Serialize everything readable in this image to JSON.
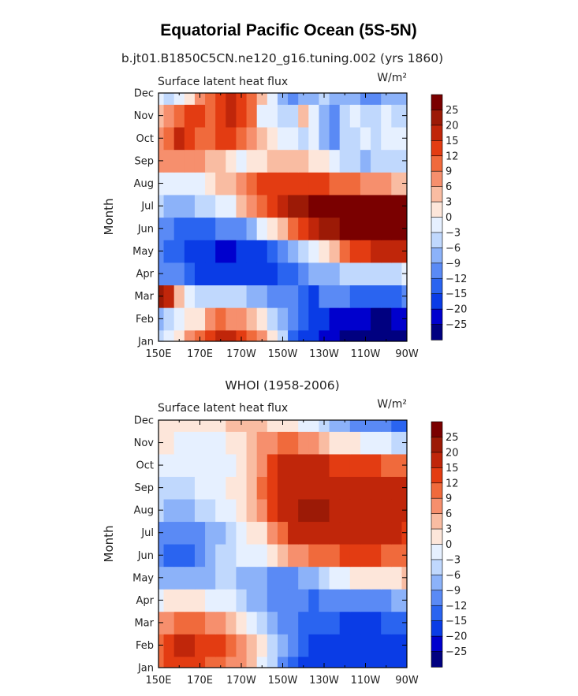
{
  "figure": {
    "title": "Equatorial Pacific Ocean (5S-5N)",
    "palette": [
      "#000080",
      "#0000cd",
      "#0a3ce6",
      "#2a64f0",
      "#5a8af5",
      "#8cb2f9",
      "#c0d8fd",
      "#e6f0ff",
      "#fde6da",
      "#f9bca2",
      "#f68f6d",
      "#f06a3c",
      "#e33c12",
      "#c0260a",
      "#9c1a06",
      "#7a0000"
    ],
    "colorbar_labels": [
      "25",
      "20",
      "15",
      "12",
      "9",
      "6",
      "3",
      "0",
      "−3",
      "−6",
      "−9",
      "−12",
      "−15",
      "−20",
      "−25"
    ]
  },
  "chart_data": [
    {
      "type": "heatmap",
      "subtitle": "b.jt01.B1850C5CN.ne120_g16.tuning.002 (yrs 1860)",
      "panel_left_label": "Surface latent heat flux",
      "units": "W/m²",
      "ylabel": "Month",
      "x_labels": [
        "150E",
        "170E",
        "170W",
        "150W",
        "130W",
        "110W",
        "90W"
      ],
      "y_labels": [
        "Jan",
        "Feb",
        "Mar",
        "Apr",
        "May",
        "Jun",
        "Jul",
        "Aug",
        "Sep",
        "Oct",
        "Nov",
        "Dec"
      ],
      "x_longitudes": [
        150,
        155,
        160,
        165,
        170,
        175,
        180,
        185,
        190,
        195,
        200,
        205,
        210,
        215,
        220,
        225,
        230,
        235,
        240,
        245,
        250,
        255,
        260,
        265,
        270
      ],
      "levels": [
        -25,
        -20,
        -15,
        -12,
        -9,
        -6,
        -3,
        0,
        3,
        6,
        9,
        12,
        15,
        20,
        25
      ],
      "values": [
        [
          -5,
          -3,
          2,
          6,
          10,
          14,
          17,
          17,
          14,
          10,
          6,
          2,
          -6,
          -13,
          -18,
          -20,
          -22,
          -24,
          -26,
          -27,
          -28,
          -28,
          -28,
          -27,
          -26
        ],
        [
          -7,
          -4,
          -3,
          0,
          2,
          6,
          9,
          8,
          6,
          3,
          0,
          -4,
          -9,
          -12,
          -15,
          -17,
          -19,
          -21,
          -23,
          -24,
          -25,
          -26,
          -26,
          -25,
          -24
        ],
        [
          22,
          15,
          3,
          -3,
          -5,
          -6,
          -5,
          -6,
          -6,
          -8,
          -9,
          -10,
          -12,
          -12,
          -13,
          -16,
          -12,
          -11,
          -12,
          -14,
          -14,
          -13,
          -14,
          -13,
          -12
        ],
        [
          -10,
          -11,
          -12,
          -14,
          -16,
          -17,
          -18,
          -19,
          -19,
          -18,
          -17,
          -16,
          -15,
          -13,
          -11,
          -9,
          -8,
          -7,
          -6,
          -6,
          -5,
          -5,
          -4,
          -4,
          -3
        ],
        [
          -12,
          -13,
          -14,
          -16,
          -18,
          -20,
          -21,
          -21,
          -20,
          -19,
          -17,
          -15,
          -12,
          -9,
          -6,
          -3,
          1,
          5,
          9,
          12,
          14,
          15,
          15,
          16,
          16
        ],
        [
          -12,
          -12,
          -13,
          -13,
          -13,
          -13,
          -12,
          -11,
          -10,
          -7,
          -3,
          0,
          5,
          10,
          14,
          17,
          20,
          24,
          26,
          27,
          28,
          28,
          27,
          26,
          25
        ],
        [
          -6,
          -7,
          -7,
          -7,
          -6,
          -5,
          -3,
          -1,
          3,
          7,
          11,
          14,
          18,
          21,
          24,
          28,
          30,
          31,
          31,
          31,
          31,
          30,
          29,
          28,
          27
        ],
        [
          -1,
          -2,
          -2,
          -2,
          -1,
          1,
          3,
          5,
          8,
          11,
          13,
          14,
          14,
          14,
          13,
          12,
          12,
          11,
          10,
          9,
          8,
          7,
          6,
          5,
          4
        ],
        [
          6,
          7,
          7,
          7,
          6,
          4,
          3,
          1,
          -1,
          0,
          1,
          3,
          4,
          5,
          4,
          2,
          1,
          -2,
          -4,
          -6,
          -7,
          -6,
          -5,
          -5,
          -4
        ],
        [
          8,
          10,
          15,
          13,
          11,
          11,
          12,
          13,
          9,
          8,
          4,
          0,
          -2,
          -1,
          -4,
          -2,
          -8,
          -10,
          -6,
          -4,
          -3,
          -4,
          -3,
          -2,
          -2
        ],
        [
          4,
          8,
          11,
          13,
          13,
          10,
          12,
          16,
          13,
          9,
          -1,
          -3,
          -6,
          -4,
          3,
          -3,
          -9,
          -11,
          -4,
          -3,
          -4,
          -5,
          -3,
          -4,
          -5
        ],
        [
          -3,
          -4,
          -2,
          2,
          7,
          11,
          14,
          15,
          13,
          9,
          4,
          -3,
          -8,
          -10,
          -9,
          -7,
          -6,
          -7,
          -8,
          -9,
          -10,
          -10,
          -9,
          -9,
          -8
        ]
      ]
    },
    {
      "type": "heatmap",
      "subtitle": "WHOI (1958-2006)",
      "panel_left_label": "Surface latent heat flux",
      "units": "W/m²",
      "ylabel": "Month",
      "x_labels": [
        "150E",
        "170E",
        "170W",
        "150W",
        "130W",
        "110W",
        "90W"
      ],
      "y_labels": [
        "Jan",
        "Feb",
        "Mar",
        "Apr",
        "May",
        "Jun",
        "Jul",
        "Aug",
        "Sep",
        "Oct",
        "Nov",
        "Dec"
      ],
      "x_longitudes": [
        150,
        155,
        160,
        165,
        170,
        175,
        180,
        185,
        190,
        195,
        200,
        205,
        210,
        215,
        220,
        225,
        230,
        235,
        240,
        245,
        250,
        255,
        260,
        265,
        270
      ],
      "levels": [
        -25,
        -20,
        -15,
        -12,
        -9,
        -6,
        -3,
        0,
        3,
        6,
        9,
        12,
        15,
        20,
        25
      ],
      "values": [
        [
          9,
          12,
          14,
          14,
          12,
          11,
          10,
          8,
          6,
          3,
          -1,
          -5,
          -10,
          -13,
          -16,
          -18,
          -19,
          -20,
          -20,
          -20,
          -19,
          -19,
          -19,
          -18,
          -18
        ],
        [
          11,
          14,
          16,
          15,
          14,
          13,
          12,
          10,
          8,
          4,
          0,
          -4,
          -8,
          -12,
          -14,
          -16,
          -17,
          -18,
          -18,
          -18,
          -17,
          -17,
          -17,
          -16,
          -16
        ],
        [
          6,
          8,
          10,
          10,
          9,
          8,
          7,
          5,
          2,
          -1,
          -4,
          -7,
          -10,
          -12,
          -13,
          -14,
          -15,
          -15,
          -16,
          -16,
          -16,
          -16,
          -15,
          -15,
          -15
        ],
        [
          -3,
          0,
          1,
          1,
          0,
          -1,
          -2,
          -3,
          -5,
          -7,
          -9,
          -10,
          -11,
          -12,
          -12,
          -13,
          -12,
          -12,
          -11,
          -11,
          -11,
          -10,
          -10,
          -9,
          -9
        ],
        [
          -9,
          -9,
          -9,
          -9,
          -8,
          -7,
          -6,
          -6,
          -7,
          -8,
          -9,
          -10,
          -10,
          -10,
          -9,
          -7,
          -5,
          -3,
          -1,
          0,
          1,
          2,
          2,
          2,
          3
        ],
        [
          -12,
          -13,
          -13,
          -13,
          -12,
          -9,
          -6,
          -4,
          -3,
          -2,
          -1,
          1,
          3,
          6,
          8,
          9,
          10,
          11,
          12,
          12,
          12,
          12,
          11,
          11,
          11
        ],
        [
          -10,
          -12,
          -12,
          -12,
          -11,
          -9,
          -7,
          -4,
          -2,
          0,
          2,
          6,
          11,
          15,
          17,
          18,
          18,
          18,
          17,
          17,
          17,
          17,
          16,
          15,
          14
        ],
        [
          -6,
          -7,
          -7,
          -7,
          -6,
          -5,
          -3,
          -1,
          1,
          4,
          7,
          12,
          16,
          19,
          21,
          22,
          21,
          19,
          18,
          18,
          18,
          18,
          17,
          16,
          15
        ],
        [
          -4,
          -5,
          -5,
          -4,
          -3,
          -2,
          -1,
          0,
          2,
          5,
          9,
          13,
          16,
          18,
          19,
          19,
          18,
          18,
          17,
          17,
          17,
          18,
          18,
          19,
          18
        ],
        [
          -1,
          -2,
          -3,
          -3,
          -2,
          -2,
          -2,
          -1,
          0,
          3,
          7,
          12,
          16,
          17,
          17,
          16,
          15,
          13,
          13,
          13,
          13,
          12,
          11,
          10,
          9
        ],
        [
          1,
          0,
          -1,
          -2,
          -2,
          -2,
          -1,
          1,
          2,
          4,
          6,
          8,
          9,
          9,
          8,
          6,
          4,
          2,
          1,
          0,
          -1,
          -2,
          -3,
          -4,
          -5
        ],
        [
          2,
          2,
          1,
          0,
          0,
          1,
          2,
          3,
          3,
          3,
          3,
          2,
          1,
          0,
          -1,
          -3,
          -5,
          -7,
          -9,
          -10,
          -11,
          -12,
          -12,
          -13,
          -14
        ]
      ]
    }
  ]
}
